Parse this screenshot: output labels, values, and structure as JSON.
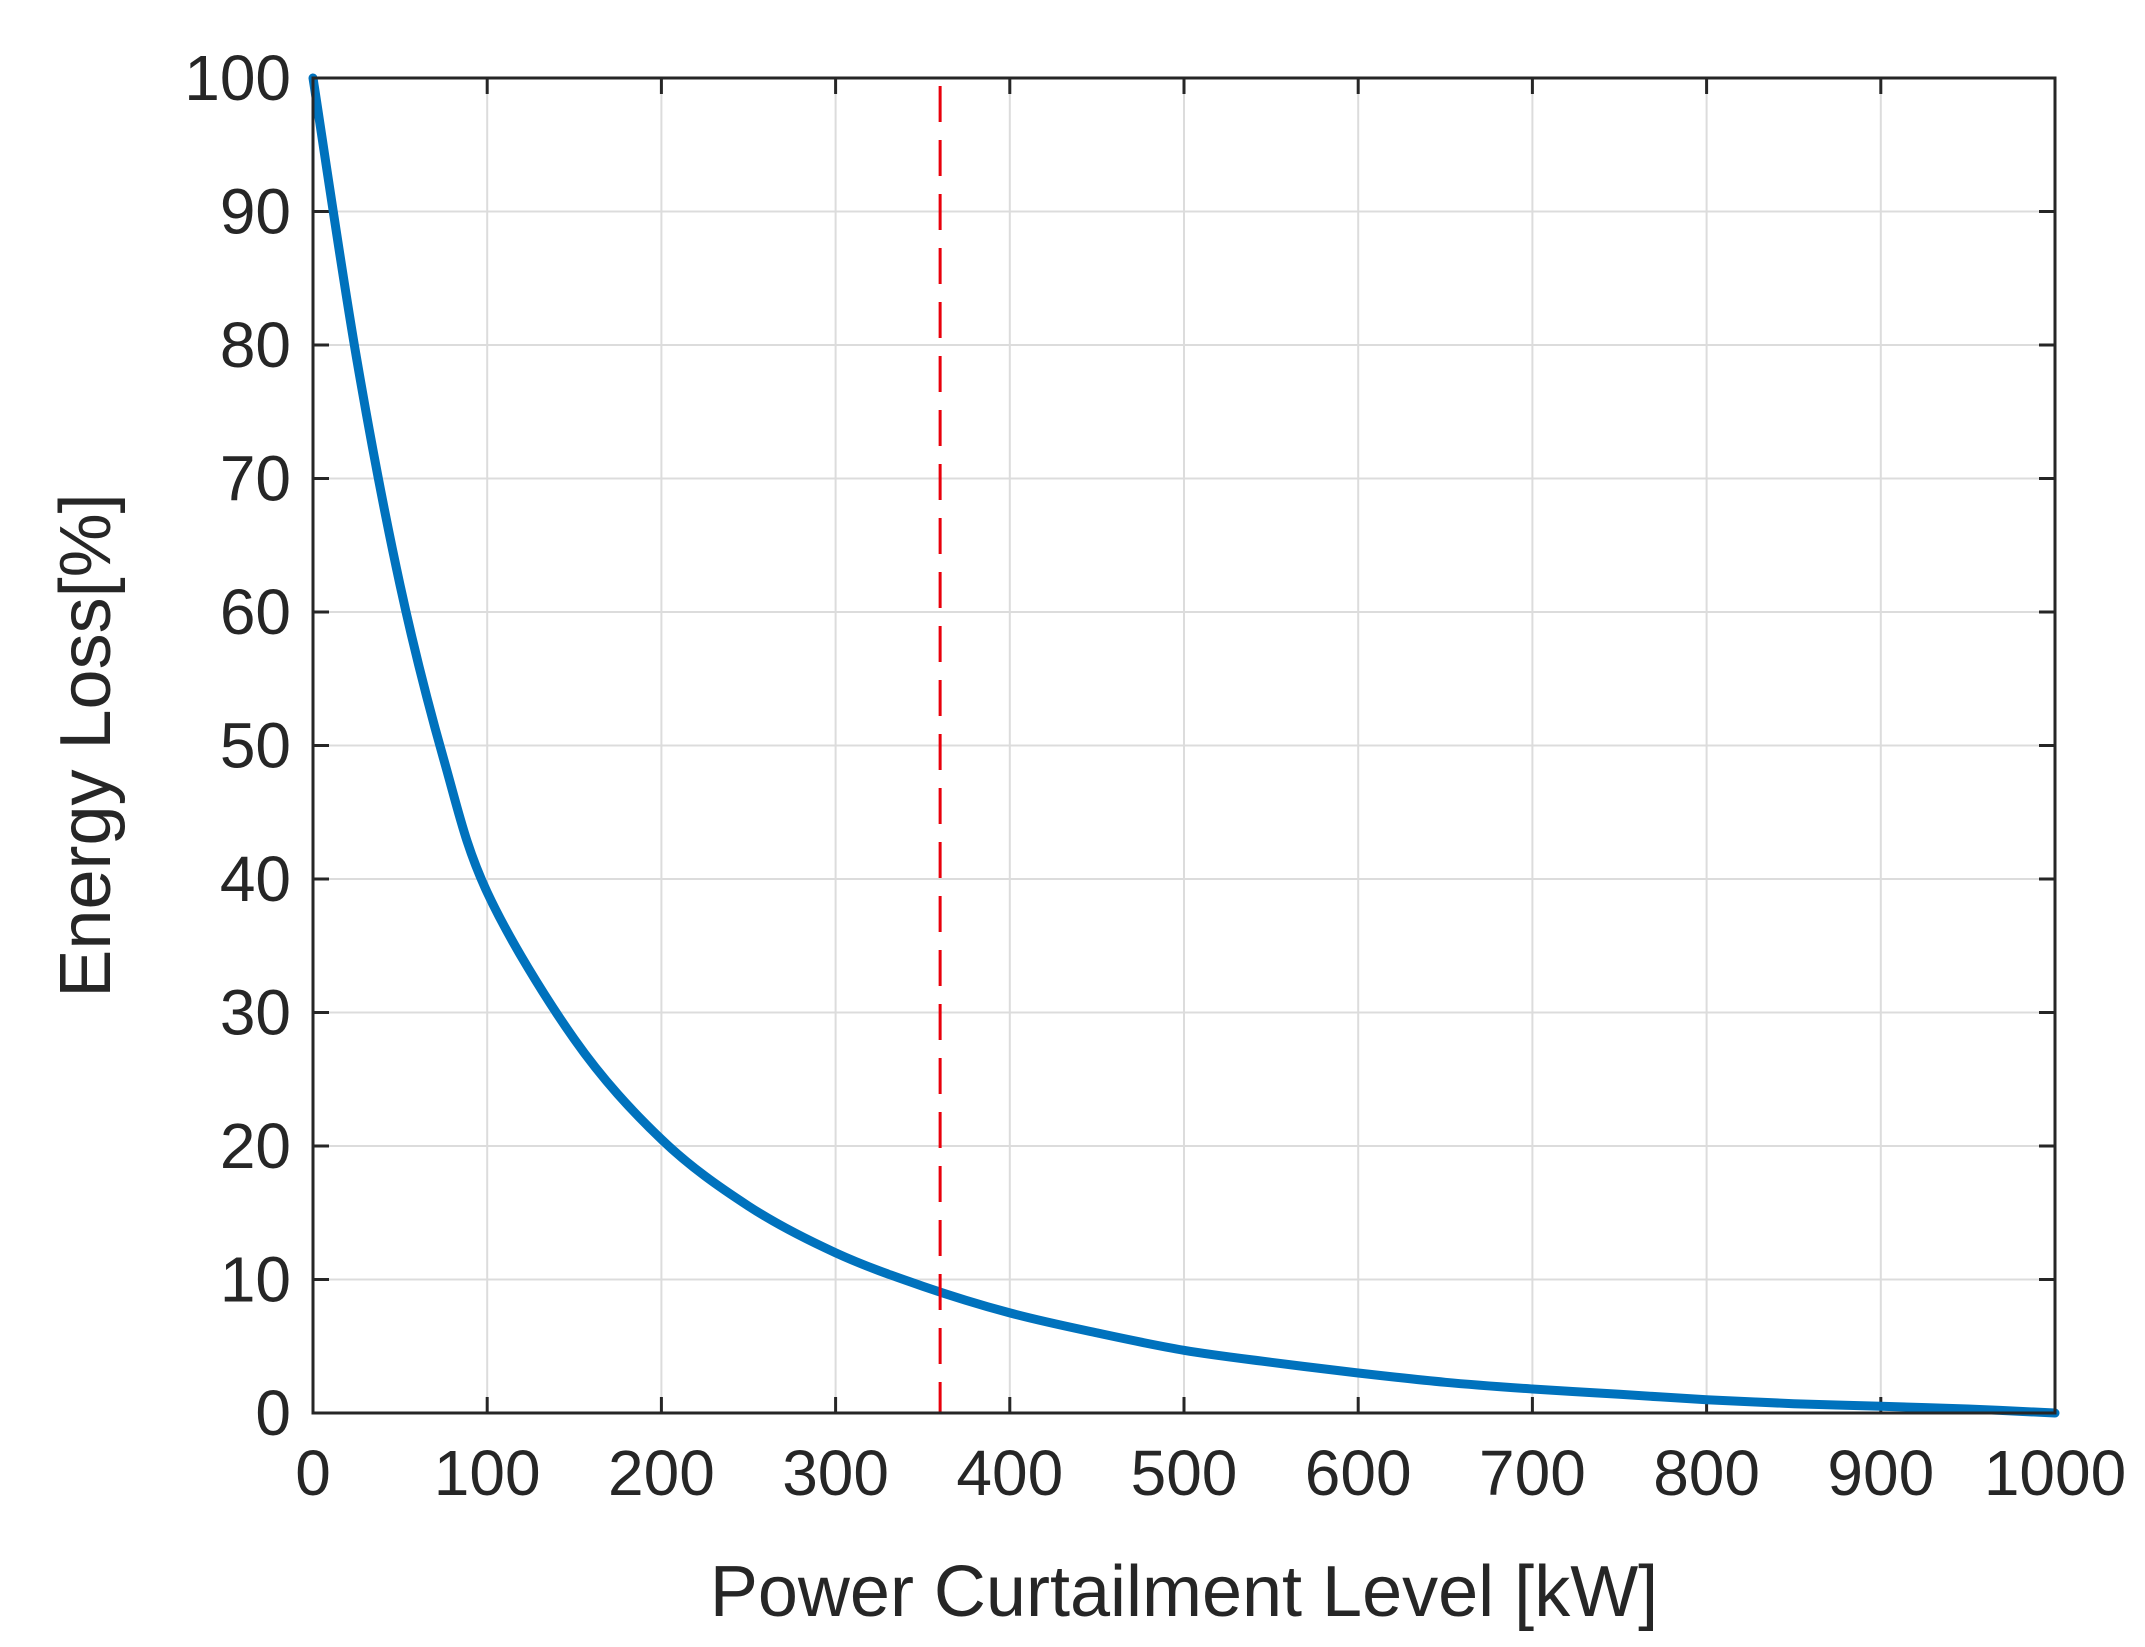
{
  "chart_data": {
    "type": "line",
    "title": "",
    "xlabel": "Power Curtailment Level [kW]",
    "ylabel": "Energy Loss[%]",
    "xlim": [
      0,
      1000
    ],
    "ylim": [
      0,
      100
    ],
    "x_ticks": [
      "0",
      "100",
      "200",
      "300",
      "400",
      "500",
      "600",
      "700",
      "800",
      "900",
      "1000"
    ],
    "y_ticks": [
      "0",
      "10",
      "20",
      "30",
      "40",
      "50",
      "60",
      "70",
      "80",
      "90",
      "100"
    ],
    "grid": true,
    "series": [
      {
        "color": "#0072BD",
        "x": [
          0,
          25,
          50,
          75,
          100,
          150,
          200,
          250,
          300,
          350,
          400,
          450,
          500,
          550,
          600,
          650,
          700,
          750,
          800,
          850,
          900,
          950,
          1000
        ],
        "y": [
          100,
          79,
          62,
          49,
          39,
          28,
          20.5,
          15.5,
          12,
          9.5,
          7.5,
          6,
          4.7,
          3.8,
          3,
          2.3,
          1.8,
          1.4,
          1.0,
          0.7,
          0.5,
          0.3,
          0
        ]
      }
    ],
    "reference_lines": [
      {
        "orientation": "vertical",
        "x": 360,
        "color": "#E8000B",
        "style": "dashed"
      }
    ]
  }
}
